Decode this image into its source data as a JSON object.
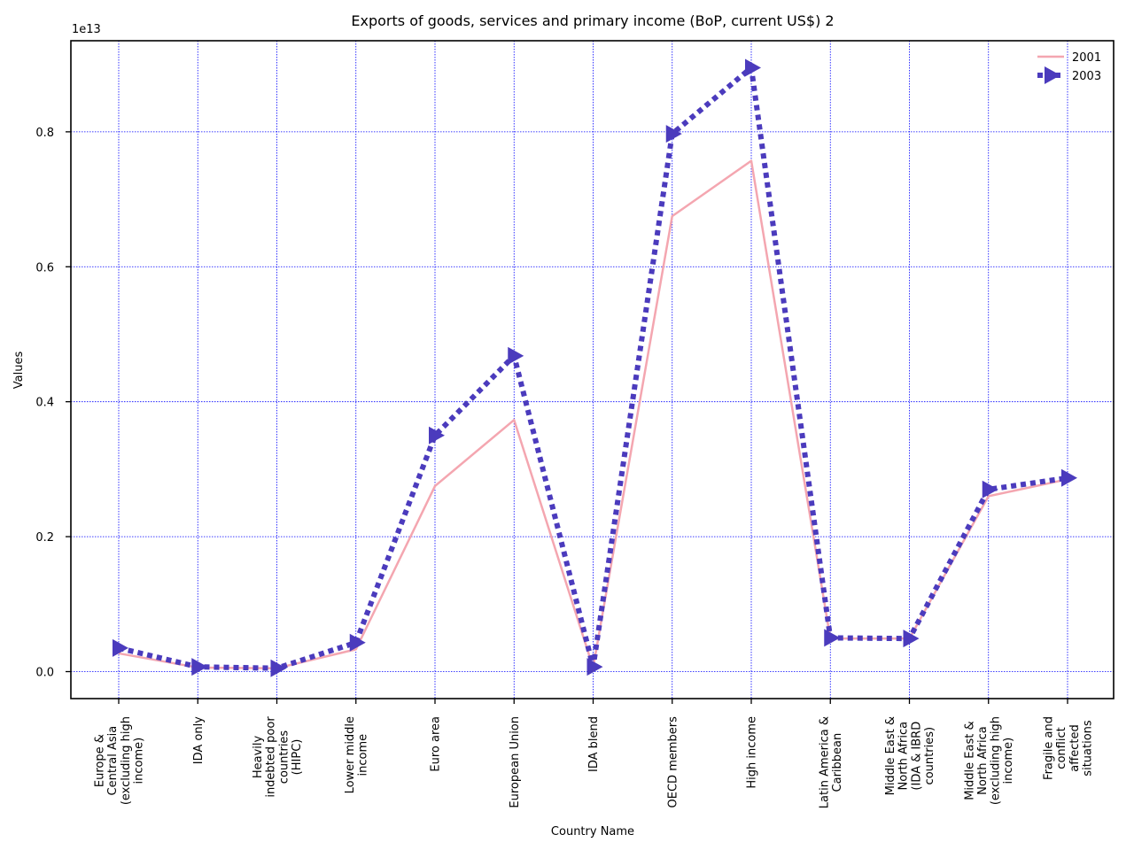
{
  "chart_data": {
    "type": "line",
    "title": "Exports of goods, services and primary income (BoP, current US$) 2",
    "xlabel": "Country Name",
    "ylabel": "Values",
    "y_offset_text": "1e13",
    "y_scale": 10000000000000,
    "ylim": [
      -0.04,
      0.935
    ],
    "yticks": [
      0.0,
      0.2,
      0.4,
      0.6,
      0.8
    ],
    "ytick_labels": [
      "0.0",
      "0.2",
      "0.4",
      "0.6",
      "0.8"
    ],
    "grid": true,
    "legend_position": "top-right",
    "categories": [
      "Europe & Central Asia (excluding high income)",
      "IDA only",
      "Heavily indebted poor countries (HIPC)",
      "Lower middle income",
      "Euro area",
      "European Union",
      "IDA blend",
      "OECD members",
      "High income",
      "Latin America & Caribbean",
      "Middle East & North Africa (IDA & IBRD countries)",
      "Middle East & North Africa (excluding high income)",
      "Fragile and conflict affected situations"
    ],
    "category_label_lines": [
      [
        "Europe &",
        "Central Asia",
        "(excluding high",
        "income)"
      ],
      [
        "IDA only"
      ],
      [
        "Heavily",
        "indebted poor",
        "countries",
        "(HIPC)"
      ],
      [
        "Lower middle",
        "income"
      ],
      [
        "Euro area"
      ],
      [
        "European Union"
      ],
      [
        "IDA blend"
      ],
      [
        "OECD members"
      ],
      [
        "High income"
      ],
      [
        "Latin America &",
        "Caribbean"
      ],
      [
        "Middle East &",
        "North Africa",
        "(IDA & IBRD",
        "countries)"
      ],
      [
        "Middle East &",
        "North Africa",
        "(excluding high",
        "income)"
      ],
      [
        "Fragile and",
        "conflict",
        "affected",
        "situations"
      ]
    ],
    "series": [
      {
        "name": "2001",
        "color": "#f4a6b0",
        "style": "solid",
        "marker": "none",
        "values": [
          0.027,
          0.006,
          0.005,
          0.033,
          0.275,
          0.373,
          0.006,
          0.675,
          0.757,
          0.049,
          0.049,
          0.26,
          0.285
        ]
      },
      {
        "name": "2003",
        "color": "#4b3bbd",
        "style": "dotted",
        "marker": "triangle-right",
        "values": [
          0.035,
          0.007,
          0.005,
          0.043,
          0.35,
          0.468,
          0.007,
          0.797,
          0.895,
          0.05,
          0.049,
          0.27,
          0.287
        ]
      }
    ]
  }
}
